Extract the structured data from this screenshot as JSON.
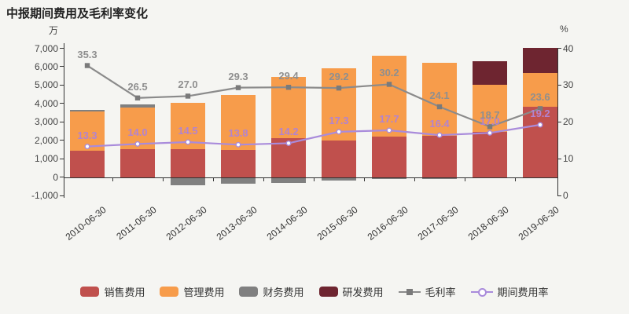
{
  "title": "中报期间费用及毛利率变化",
  "left_axis": {
    "unit": "万",
    "ticks": [
      "7,000",
      "6,000",
      "5,000",
      "4,000",
      "3,000",
      "2,000",
      "1,000",
      "0",
      "-1,000"
    ]
  },
  "right_axis": {
    "unit": "%",
    "ticks": [
      "40",
      "30",
      "20",
      "10",
      "0"
    ]
  },
  "legend": [
    {
      "id": "sales",
      "label": "销售费用",
      "swatch": "bar"
    },
    {
      "id": "admin",
      "label": "管理费用",
      "swatch": "bar"
    },
    {
      "id": "finance",
      "label": "财务费用",
      "swatch": "bar"
    },
    {
      "id": "rnd",
      "label": "研发费用",
      "swatch": "bar"
    },
    {
      "id": "gross-margin",
      "label": "毛利率",
      "swatch": "line-square"
    },
    {
      "id": "expense-ratio",
      "label": "期间费用率",
      "swatch": "line-circle"
    }
  ],
  "chart_data": {
    "type": "bar+line",
    "title": "中报期间费用及毛利率变化",
    "categories": [
      "2010-06-30",
      "2011-06-30",
      "2012-06-30",
      "2013-06-30",
      "2014-06-30",
      "2015-06-30",
      "2016-06-30",
      "2017-06-30",
      "2018-06-30",
      "2019-06-30"
    ],
    "left_unit": "万",
    "right_unit": "%",
    "left_ylim": [
      -1000,
      7000
    ],
    "right_ylim": [
      0,
      40
    ],
    "grid": false,
    "legend_position": "bottom",
    "series": [
      {
        "name": "销售费用",
        "type": "bar",
        "stack": true,
        "color": "#c0504d",
        "values": [
          1430,
          1520,
          1500,
          1480,
          2100,
          2000,
          2200,
          2250,
          2450,
          3830
        ]
      },
      {
        "name": "管理费用",
        "type": "bar",
        "stack": true,
        "color": "#f79c4b",
        "values": [
          2120,
          2250,
          2550,
          3000,
          3330,
          3900,
          4400,
          3950,
          2560,
          1830
        ]
      },
      {
        "name": "财务费用",
        "type": "bar",
        "stack": true,
        "color": "#808080",
        "values": [
          110,
          170,
          -450,
          -340,
          -330,
          -200,
          -110,
          -90,
          0,
          0
        ]
      },
      {
        "name": "研发费用",
        "type": "bar",
        "stack": true,
        "color": "#6e2530",
        "values": [
          0,
          0,
          0,
          0,
          0,
          0,
          0,
          0,
          1280,
          1360
        ]
      },
      {
        "name": "毛利率",
        "type": "line",
        "axis": "right",
        "color": "#8b8b8b",
        "marker": "square",
        "label_color": "#8f8f8f",
        "values": [
          35.3,
          26.5,
          27.0,
          29.3,
          29.4,
          29.2,
          30.2,
          24.1,
          18.7,
          23.6
        ]
      },
      {
        "name": "期间费用率",
        "type": "line",
        "axis": "right",
        "color": "#a98bdb",
        "marker": "circle",
        "label_color": "#b283cf",
        "values": [
          13.3,
          14.0,
          14.5,
          13.8,
          14.2,
          17.3,
          17.7,
          16.4,
          17.0,
          19.2
        ]
      }
    ]
  }
}
